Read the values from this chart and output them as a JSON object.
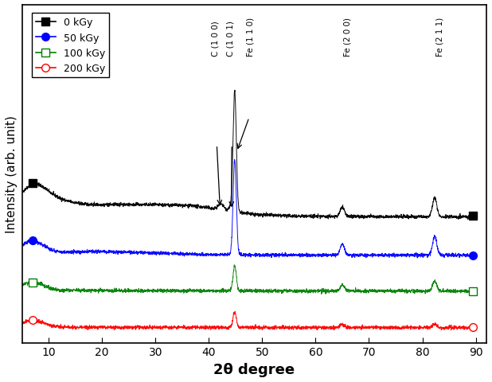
{
  "title": "",
  "xlabel": "2θ degree",
  "ylabel": "Intensity (arb. unit)",
  "xlim": [
    5,
    92
  ],
  "colors": [
    "black",
    "blue",
    "green",
    "red"
  ],
  "labels": [
    "0 kGy",
    "50 kGy",
    "100 kGy",
    "200 kGy"
  ],
  "offsets": [
    3.2,
    2.1,
    1.05,
    0.0
  ],
  "peak_positions": {
    "C100": 42.3,
    "C101": 44.2,
    "Fe110": 44.85,
    "Fe200": 65.0,
    "Fe211": 82.3
  },
  "peak_heights": {
    "black": {
      "C100": 0.18,
      "C101": 0.12,
      "Fe110": 3.5,
      "Fe200": 0.28,
      "Fe211": 0.55
    },
    "blue": {
      "C100": 0.0,
      "C101": 0.0,
      "Fe110": 2.8,
      "Fe200": 0.32,
      "Fe211": 0.55
    },
    "green": {
      "C100": 0.0,
      "C101": 0.0,
      "Fe110": 0.75,
      "Fe200": 0.18,
      "Fe211": 0.28
    },
    "red": {
      "C100": 0.0,
      "C101": 0.0,
      "Fe110": 0.45,
      "Fe200": 0.1,
      "Fe211": 0.1
    }
  },
  "background_color": "white",
  "noise_seed": 42
}
